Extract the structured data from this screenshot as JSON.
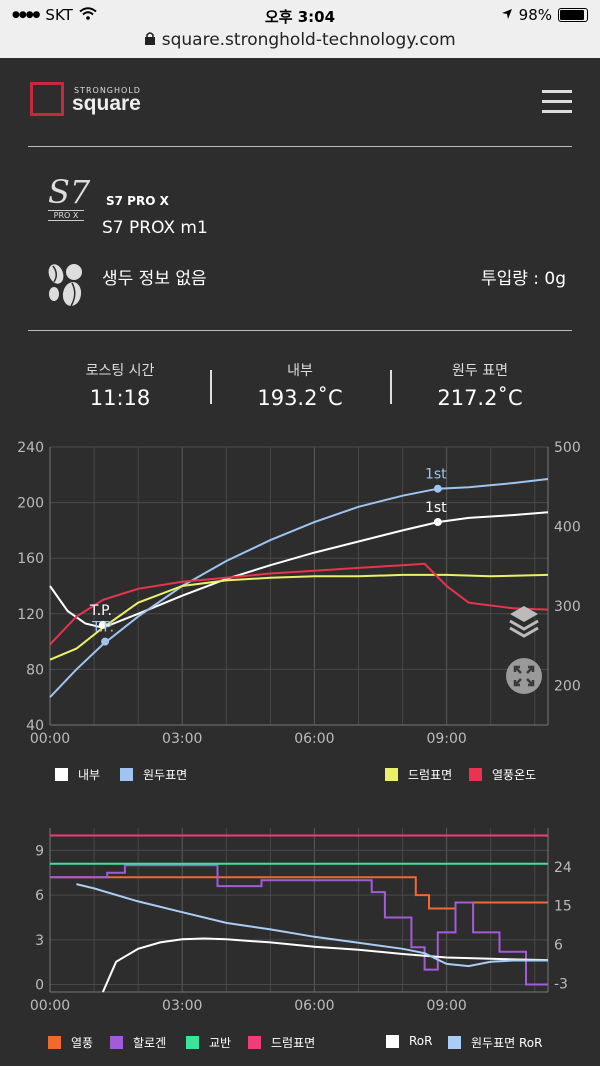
{
  "status": {
    "carrier": "SKT",
    "time": "오후 3:04",
    "battery": "98%",
    "url": "square.stronghold-technology.com"
  },
  "header": {
    "brand_small": "STRONGHOLD",
    "brand_big": "square"
  },
  "device": {
    "model": "S7 PRO X",
    "name": "S7 PROX m1",
    "logo_text": "S7",
    "logo_sub": "PRO X"
  },
  "bean": {
    "info": "생두 정보 없음",
    "charge": "투입량 : 0g"
  },
  "stats": [
    {
      "label": "로스팅 시간",
      "value": "11:18"
    },
    {
      "label": "내부",
      "value": "193.2˚C"
    },
    {
      "label": "원두 표면",
      "value": "217.2˚C"
    }
  ],
  "colors": {
    "inner": "#ffffff",
    "bean_surface": "#9ec4ef",
    "drum": "#eaf06a",
    "hot_air": "#e8344f",
    "heat": "#ef6a2e",
    "halogen": "#a35cd8",
    "agitator": "#3ee39a",
    "drum_surface": "#ef3d7a",
    "ror": "#ffffff",
    "bean_ror": "#a9cdf3"
  },
  "chart_data": [
    {
      "type": "line",
      "x_ticks": [
        "00:00",
        "03:00",
        "06:00",
        "09:00"
      ],
      "y_left_ticks": [
        "240",
        "200",
        "160",
        "120",
        "80",
        "40"
      ],
      "y_right_ticks": [
        "500",
        "400",
        "300",
        "200"
      ],
      "ylim_left": [
        40,
        240
      ],
      "ylim_right": [
        150,
        500
      ],
      "xlim": [
        0,
        11.3
      ],
      "markers": [
        {
          "text": "T.P.",
          "x": 1.2,
          "y": 112
        },
        {
          "text": "T.P.",
          "x": 1.25,
          "y": 100
        },
        {
          "text": "1st",
          "x": 8.8,
          "y": 210
        },
        {
          "text": "1st",
          "x": 8.8,
          "y": 186
        }
      ],
      "series": [
        {
          "name": "내부",
          "axis": "left",
          "x": [
            0,
            0.4,
            0.8,
            1.2,
            2,
            3,
            4,
            5,
            6,
            7,
            8,
            8.8,
            9.5,
            10.5,
            11.3
          ],
          "y": [
            140,
            122,
            113,
            110,
            120,
            133,
            145,
            155,
            164,
            172,
            180,
            186,
            189,
            191,
            193
          ]
        },
        {
          "name": "원두표면",
          "axis": "left",
          "x": [
            0,
            0.6,
            1.2,
            2,
            3,
            4,
            5,
            6,
            7,
            8,
            8.8,
            9.5,
            10.5,
            11.3
          ],
          "y": [
            60,
            80,
            98,
            118,
            140,
            158,
            173,
            186,
            197,
            205,
            210,
            211,
            214,
            217
          ]
        },
        {
          "name": "드럼표면",
          "axis": "left",
          "x": [
            0,
            0.6,
            1.2,
            2,
            3,
            4,
            5,
            6,
            7,
            8,
            9,
            10,
            11.3
          ],
          "y": [
            87,
            95,
            110,
            128,
            140,
            144,
            146,
            147,
            147,
            148,
            148,
            147,
            148
          ]
        },
        {
          "name": "열풍온도",
          "axis": "left",
          "x": [
            0,
            0.6,
            1.2,
            2,
            3,
            4,
            5,
            6,
            7,
            8,
            8.5,
            9,
            9.5,
            10.5,
            11.3
          ],
          "y": [
            98,
            118,
            130,
            138,
            143,
            146,
            149,
            151,
            153,
            155,
            156,
            140,
            128,
            124,
            123
          ]
        }
      ]
    },
    {
      "type": "line",
      "x_ticks": [
        "00:00",
        "03:00",
        "06:00",
        "09:00"
      ],
      "y_left_ticks": [
        "9",
        "6",
        "3",
        "0"
      ],
      "y_right_ticks": [
        "24",
        "15",
        "6",
        "-3"
      ],
      "ylim_left": [
        -0.5,
        10.5
      ],
      "ylim_right": [
        -5,
        33
      ],
      "xlim": [
        0,
        11.3
      ],
      "series": [
        {
          "name": "열풍",
          "axis": "left",
          "x": [
            0,
            8.3,
            8.3,
            8.6,
            8.6,
            9.2,
            9.2,
            11.3
          ],
          "y": [
            7.2,
            7.2,
            6,
            6,
            5.1,
            5.1,
            5.5,
            5.5
          ]
        },
        {
          "name": "할로겐",
          "axis": "left",
          "x": [
            0,
            1.3,
            1.3,
            1.7,
            1.7,
            3.8,
            3.8,
            4.8,
            4.8,
            7.3,
            7.3,
            7.6,
            7.6,
            8.2,
            8.2,
            8.5,
            8.5,
            8.8,
            8.8,
            9.2,
            9.2,
            9.6,
            9.6,
            10.2,
            10.2,
            10.8,
            10.8,
            11.3
          ],
          "y": [
            7.2,
            7.2,
            7.5,
            7.5,
            8,
            8,
            6.6,
            6.6,
            7,
            7,
            6.2,
            6.2,
            4.5,
            4.5,
            2.5,
            2.5,
            1,
            1,
            3.5,
            3.5,
            5.5,
            5.5,
            3.5,
            3.5,
            2.2,
            2.2,
            0,
            0
          ]
        },
        {
          "name": "교반",
          "axis": "left",
          "x": [
            0,
            11.3
          ],
          "y": [
            8.1,
            8.1
          ]
        },
        {
          "name": "드럼표면",
          "axis": "left",
          "x": [
            0,
            11.3
          ],
          "y": [
            10,
            10
          ]
        },
        {
          "name": "RoR",
          "axis": "right",
          "x": [
            1.2,
            1.5,
            2,
            2.5,
            3,
            3.5,
            4,
            5,
            6,
            7,
            8,
            9,
            10,
            11.3
          ],
          "y": [
            -5,
            2,
            5,
            6.5,
            7.2,
            7.4,
            7.2,
            6.5,
            5.5,
            4.8,
            3.8,
            3,
            2.7,
            2.4
          ]
        },
        {
          "name": "원두표면 RoR",
          "axis": "right",
          "x": [
            0.6,
            1,
            2,
            3,
            4,
            5,
            6,
            7,
            8,
            8.5,
            9,
            9.5,
            10,
            10.5,
            11.3
          ],
          "y": [
            20,
            19,
            16,
            13.5,
            11,
            9.5,
            7.8,
            6.4,
            5,
            4,
            1.5,
            1,
            2,
            2.3,
            2.3
          ]
        }
      ]
    }
  ],
  "legend1": [
    {
      "label": "내부"
    },
    {
      "label": "원두표면"
    },
    {
      "label": "드럼표면"
    },
    {
      "label": "열풍온도"
    }
  ],
  "legend2": [
    {
      "label": "열풍"
    },
    {
      "label": "할로겐"
    },
    {
      "label": "교반"
    },
    {
      "label": "드럼표면"
    },
    {
      "label": "RoR"
    },
    {
      "label": "원두표면 RoR"
    }
  ]
}
